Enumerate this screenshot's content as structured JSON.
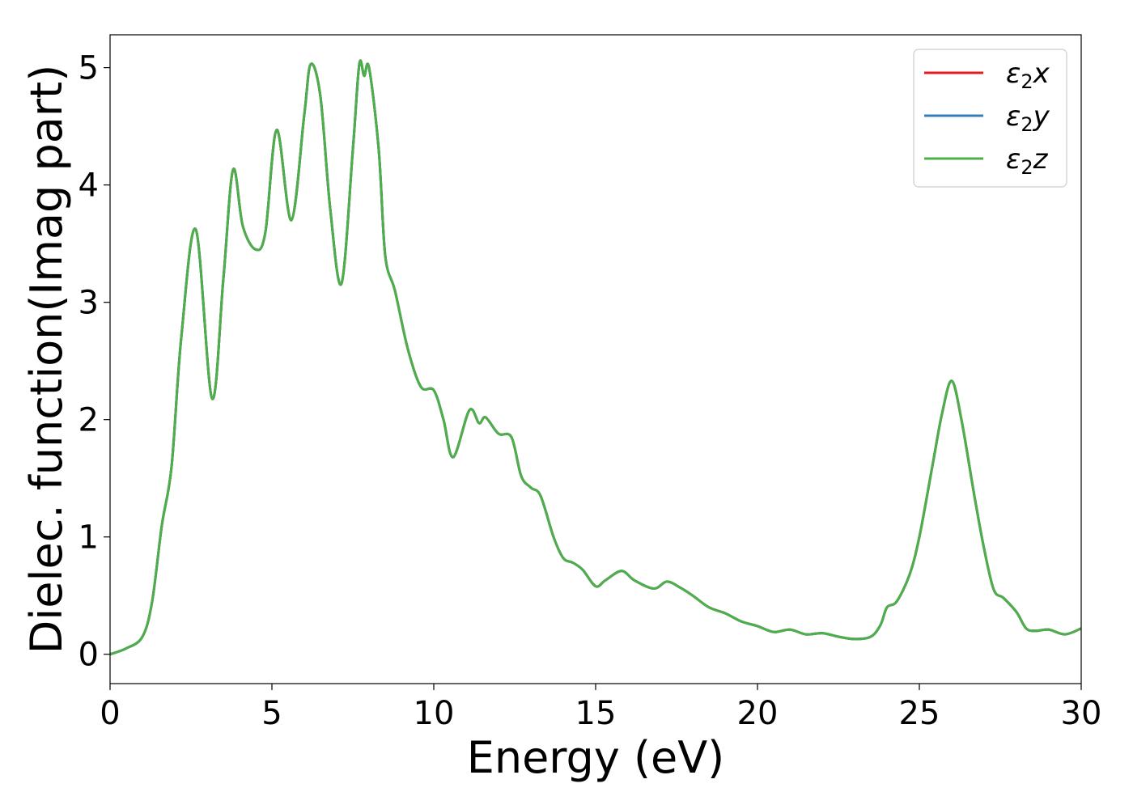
{
  "chart_data": {
    "type": "line",
    "title": "",
    "xlabel": "Energy (eV)",
    "ylabel": "Dielec. function(Imag part)",
    "xlim": [
      0,
      30
    ],
    "ylim": [
      -0.25,
      5.28
    ],
    "xticks": [
      0,
      5,
      10,
      15,
      20,
      25,
      30
    ],
    "yticks": [
      0,
      1,
      2,
      3,
      4,
      5
    ],
    "grid": false,
    "legend_position": "top-right",
    "series": [
      {
        "name": "ε₂x",
        "legend": {
          "base": "ε",
          "sub": "2",
          "var": "x"
        },
        "color": "#e41a1c",
        "x": [
          0,
          0.5,
          1.0,
          1.3,
          1.6,
          1.9,
          2.2,
          2.65,
          3.15,
          3.5,
          3.8,
          4.1,
          4.5,
          4.8,
          5.15,
          5.6,
          6.0,
          6.2,
          6.5,
          6.8,
          7.15,
          7.5,
          7.7,
          7.85,
          8.0,
          8.3,
          8.5,
          8.8,
          9.2,
          9.6,
          10.0,
          10.3,
          10.6,
          11.1,
          11.4,
          11.6,
          12.0,
          12.4,
          12.7,
          13.0,
          13.3,
          13.7,
          14.0,
          14.3,
          14.6,
          15.0,
          15.3,
          15.8,
          16.2,
          16.8,
          17.2,
          17.6,
          18.0,
          18.5,
          19.0,
          19.5,
          20.0,
          20.5,
          21.0,
          21.5,
          22.0,
          22.5,
          23.0,
          23.5,
          23.8,
          24.0,
          24.3,
          24.7,
          25.0,
          25.4,
          25.7,
          26.0,
          26.3,
          26.7,
          27.0,
          27.3,
          27.6,
          28.0,
          28.3,
          28.6,
          29.0,
          29.5,
          30.0
        ],
        "values": [
          0.0,
          0.05,
          0.15,
          0.45,
          1.1,
          1.6,
          2.7,
          3.62,
          2.18,
          3.2,
          4.13,
          3.65,
          3.45,
          3.6,
          4.47,
          3.7,
          4.6,
          5.03,
          4.75,
          3.8,
          3.16,
          4.3,
          5.03,
          4.93,
          5.0,
          4.3,
          3.4,
          3.1,
          2.6,
          2.28,
          2.25,
          2.0,
          1.68,
          2.08,
          1.97,
          2.02,
          1.88,
          1.85,
          1.52,
          1.42,
          1.35,
          1.0,
          0.82,
          0.78,
          0.72,
          0.58,
          0.63,
          0.71,
          0.63,
          0.56,
          0.62,
          0.57,
          0.5,
          0.4,
          0.35,
          0.28,
          0.24,
          0.19,
          0.21,
          0.17,
          0.18,
          0.15,
          0.13,
          0.15,
          0.25,
          0.4,
          0.45,
          0.68,
          1.0,
          1.6,
          2.05,
          2.33,
          2.0,
          1.35,
          0.9,
          0.55,
          0.48,
          0.36,
          0.22,
          0.2,
          0.21,
          0.17,
          0.22
        ]
      },
      {
        "name": "ε₂y",
        "legend": {
          "base": "ε",
          "sub": "2",
          "var": "y"
        },
        "color": "#377eb8",
        "x": [
          0,
          0.5,
          1.0,
          1.3,
          1.6,
          1.9,
          2.2,
          2.65,
          3.15,
          3.5,
          3.8,
          4.1,
          4.5,
          4.8,
          5.15,
          5.6,
          6.0,
          6.2,
          6.5,
          6.8,
          7.15,
          7.5,
          7.7,
          7.85,
          8.0,
          8.3,
          8.5,
          8.8,
          9.2,
          9.6,
          10.0,
          10.3,
          10.6,
          11.1,
          11.4,
          11.6,
          12.0,
          12.4,
          12.7,
          13.0,
          13.3,
          13.7,
          14.0,
          14.3,
          14.6,
          15.0,
          15.3,
          15.8,
          16.2,
          16.8,
          17.2,
          17.6,
          18.0,
          18.5,
          19.0,
          19.5,
          20.0,
          20.5,
          21.0,
          21.5,
          22.0,
          22.5,
          23.0,
          23.5,
          23.8,
          24.0,
          24.3,
          24.7,
          25.0,
          25.4,
          25.7,
          26.0,
          26.3,
          26.7,
          27.0,
          27.3,
          27.6,
          28.0,
          28.3,
          28.6,
          29.0,
          29.5,
          30.0
        ],
        "values": [
          0.0,
          0.05,
          0.15,
          0.45,
          1.1,
          1.6,
          2.7,
          3.62,
          2.18,
          3.2,
          4.13,
          3.65,
          3.45,
          3.6,
          4.47,
          3.7,
          4.6,
          5.03,
          4.75,
          3.8,
          3.16,
          4.3,
          5.03,
          4.93,
          5.0,
          4.3,
          3.4,
          3.1,
          2.6,
          2.28,
          2.25,
          2.0,
          1.68,
          2.08,
          1.97,
          2.02,
          1.88,
          1.85,
          1.52,
          1.42,
          1.35,
          1.0,
          0.82,
          0.78,
          0.72,
          0.58,
          0.63,
          0.71,
          0.63,
          0.56,
          0.62,
          0.57,
          0.5,
          0.4,
          0.35,
          0.28,
          0.24,
          0.19,
          0.21,
          0.17,
          0.18,
          0.15,
          0.13,
          0.15,
          0.25,
          0.4,
          0.45,
          0.68,
          1.0,
          1.6,
          2.05,
          2.33,
          2.0,
          1.35,
          0.9,
          0.55,
          0.48,
          0.36,
          0.22,
          0.2,
          0.21,
          0.17,
          0.22
        ]
      },
      {
        "name": "ε₂z",
        "legend": {
          "base": "ε",
          "sub": "2",
          "var": "z"
        },
        "color": "#4daf4a",
        "x": [
          0,
          0.5,
          1.0,
          1.3,
          1.6,
          1.9,
          2.2,
          2.65,
          3.15,
          3.5,
          3.8,
          4.1,
          4.5,
          4.8,
          5.15,
          5.6,
          6.0,
          6.2,
          6.5,
          6.8,
          7.15,
          7.5,
          7.7,
          7.85,
          8.0,
          8.3,
          8.5,
          8.8,
          9.2,
          9.6,
          10.0,
          10.3,
          10.6,
          11.1,
          11.4,
          11.6,
          12.0,
          12.4,
          12.7,
          13.0,
          13.3,
          13.7,
          14.0,
          14.3,
          14.6,
          15.0,
          15.3,
          15.8,
          16.2,
          16.8,
          17.2,
          17.6,
          18.0,
          18.5,
          19.0,
          19.5,
          20.0,
          20.5,
          21.0,
          21.5,
          22.0,
          22.5,
          23.0,
          23.5,
          23.8,
          24.0,
          24.3,
          24.7,
          25.0,
          25.4,
          25.7,
          26.0,
          26.3,
          26.7,
          27.0,
          27.3,
          27.6,
          28.0,
          28.3,
          28.6,
          29.0,
          29.5,
          30.0
        ],
        "values": [
          0.0,
          0.05,
          0.15,
          0.45,
          1.1,
          1.6,
          2.7,
          3.62,
          2.18,
          3.2,
          4.13,
          3.65,
          3.45,
          3.6,
          4.47,
          3.7,
          4.6,
          5.03,
          4.75,
          3.8,
          3.16,
          4.3,
          5.03,
          4.93,
          5.0,
          4.3,
          3.4,
          3.1,
          2.6,
          2.28,
          2.25,
          2.0,
          1.68,
          2.08,
          1.97,
          2.02,
          1.88,
          1.85,
          1.52,
          1.42,
          1.35,
          1.0,
          0.82,
          0.78,
          0.72,
          0.58,
          0.63,
          0.71,
          0.63,
          0.56,
          0.62,
          0.57,
          0.5,
          0.4,
          0.35,
          0.28,
          0.24,
          0.19,
          0.21,
          0.17,
          0.18,
          0.15,
          0.13,
          0.15,
          0.25,
          0.4,
          0.45,
          0.68,
          1.0,
          1.6,
          2.05,
          2.33,
          2.0,
          1.35,
          0.9,
          0.55,
          0.48,
          0.36,
          0.22,
          0.2,
          0.21,
          0.17,
          0.22
        ]
      }
    ]
  }
}
